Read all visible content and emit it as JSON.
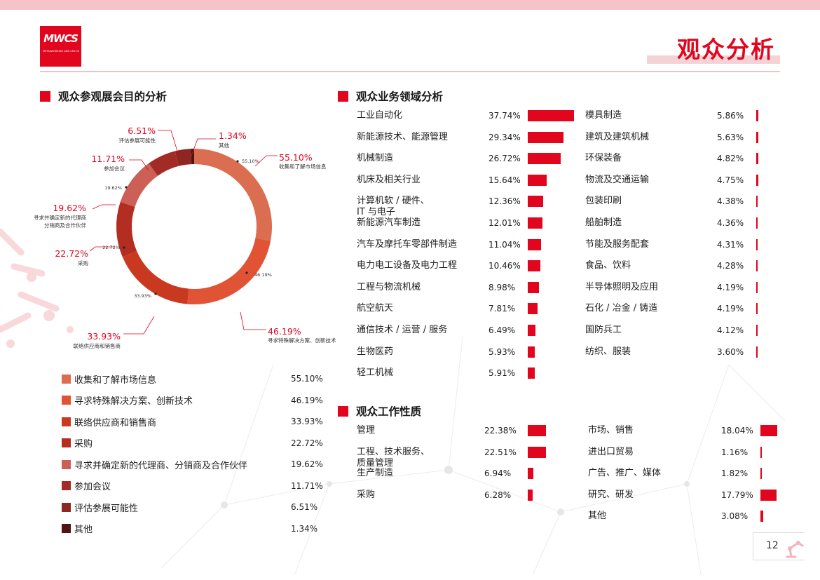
{
  "header": {
    "logo_text": "MWCS",
    "logo_sub": "METALWORKING AND CNC MACHINE TOOL SHOW",
    "title": "观众分析"
  },
  "colors": {
    "brand_red": "#e1051e",
    "slice_colors": [
      "#db6d50",
      "#e05335",
      "#c9391f",
      "#b42d22",
      "#cc5f56",
      "#a32b26",
      "#8e2621",
      "#511414"
    ]
  },
  "purpose": {
    "heading": "观众参观展会目的分析",
    "items": [
      {
        "label": "收集和了解市场信息",
        "value": "55.10%",
        "pct": 55.1,
        "callout": "收集和了解市场信息"
      },
      {
        "label": "寻求特殊解决方案、创新技术",
        "value": "46.19%",
        "pct": 46.19,
        "callout": "寻求特殊解决方案、创新技术"
      },
      {
        "label": "联络供应商和销售商",
        "value": "33.93%",
        "pct": 33.93,
        "callout": "联络供应商和销售商"
      },
      {
        "label": "采购",
        "value": "22.72%",
        "pct": 22.72,
        "callout": "采购"
      },
      {
        "label": "寻求并确定新的代理商、分销商及合作伙伴",
        "value": "19.62%",
        "pct": 19.62,
        "callout_l1": "寻求并确定新的代理商",
        "callout_l2": "分销商及合作伙伴"
      },
      {
        "label": "参加会议",
        "value": "11.71%",
        "pct": 11.71,
        "callout": "参加会议"
      },
      {
        "label": "评估参展可能性",
        "value": "6.51%",
        "pct": 6.51,
        "callout": "评估参展可能性"
      },
      {
        "label": "其他",
        "value": "1.34%",
        "pct": 1.34,
        "callout": "其他"
      }
    ]
  },
  "business": {
    "heading": "观众业务领域分析",
    "left": [
      {
        "label": "工业自动化",
        "value": "37.74%",
        "pct": 37.74
      },
      {
        "label": "新能源技术、能源管理",
        "value": "29.34%",
        "pct": 29.34
      },
      {
        "label": "机械制造",
        "value": "26.72%",
        "pct": 26.72
      },
      {
        "label": "机床及相关行业",
        "value": "15.64%",
        "pct": 15.64
      },
      {
        "label": "计算机软 / 硬件、",
        "label2": "IT 与电子",
        "value": "12.36%",
        "pct": 12.36
      },
      {
        "label": "新能源汽车制造",
        "value": "12.01%",
        "pct": 12.01
      },
      {
        "label": "汽车及摩托车零部件制造",
        "value": "11.04%",
        "pct": 11.04
      },
      {
        "label": "电力电工设备及电力工程",
        "value": "10.46%",
        "pct": 10.46
      },
      {
        "label": "工程与物流机械",
        "value": "8.98%",
        "pct": 8.98
      },
      {
        "label": "航空航天",
        "value": "7.81%",
        "pct": 7.81
      },
      {
        "label": "通信技术 / 运营 / 服务",
        "value": "6.49%",
        "pct": 6.49
      },
      {
        "label": "生物医药",
        "value": "5.93%",
        "pct": 5.93
      },
      {
        "label": "轻工机械",
        "value": "5.91%",
        "pct": 5.91
      }
    ],
    "right": [
      {
        "label": "模具制造",
        "value": "5.86%",
        "pct": 5.86
      },
      {
        "label": "建筑及建筑机械",
        "value": "5.63%",
        "pct": 5.63
      },
      {
        "label": "环保装备",
        "value": "4.82%",
        "pct": 4.82
      },
      {
        "label": "物流及交通运输",
        "value": "4.75%",
        "pct": 4.75
      },
      {
        "label": "包装印刷",
        "value": "4.38%",
        "pct": 4.38
      },
      {
        "label": "船舶制造",
        "value": "4.36%",
        "pct": 4.36
      },
      {
        "label": "节能及服务配套",
        "value": "4.31%",
        "pct": 4.31
      },
      {
        "label": "食品、饮料",
        "value": "4.28%",
        "pct": 4.28
      },
      {
        "label": "半导体照明及应用",
        "value": "4.19%",
        "pct": 4.19
      },
      {
        "label": "石化 / 冶金 / 铸造",
        "value": "4.19%",
        "pct": 4.19
      },
      {
        "label": "国防兵工",
        "value": "4.12%",
        "pct": 4.12
      },
      {
        "label": "纺织、服装",
        "value": "3.60%",
        "pct": 3.6
      }
    ]
  },
  "work": {
    "heading": "观众工作性质",
    "left": [
      {
        "label": "管理",
        "value": "22.38%",
        "pct": 22.38
      },
      {
        "label": "工程、技术服务、",
        "label2": "质量管理",
        "value": "22.51%",
        "pct": 22.51
      },
      {
        "label": "生产制造",
        "value": "6.94%",
        "pct": 6.94
      },
      {
        "label": "采购",
        "value": "6.28%",
        "pct": 6.28
      }
    ],
    "right": [
      {
        "label": "市场、销售",
        "value": "18.04%",
        "pct": 18.04
      },
      {
        "label": "进出口贸易",
        "value": "1.16%",
        "pct": 1.16
      },
      {
        "label": "广告、推广、媒体",
        "value": "1.82%",
        "pct": 1.82
      },
      {
        "label": "研究、研发",
        "value": "17.79%",
        "pct": 17.79
      },
      {
        "label": "其他",
        "value": "3.08%",
        "pct": 3.08
      }
    ]
  },
  "page_number": "12"
}
